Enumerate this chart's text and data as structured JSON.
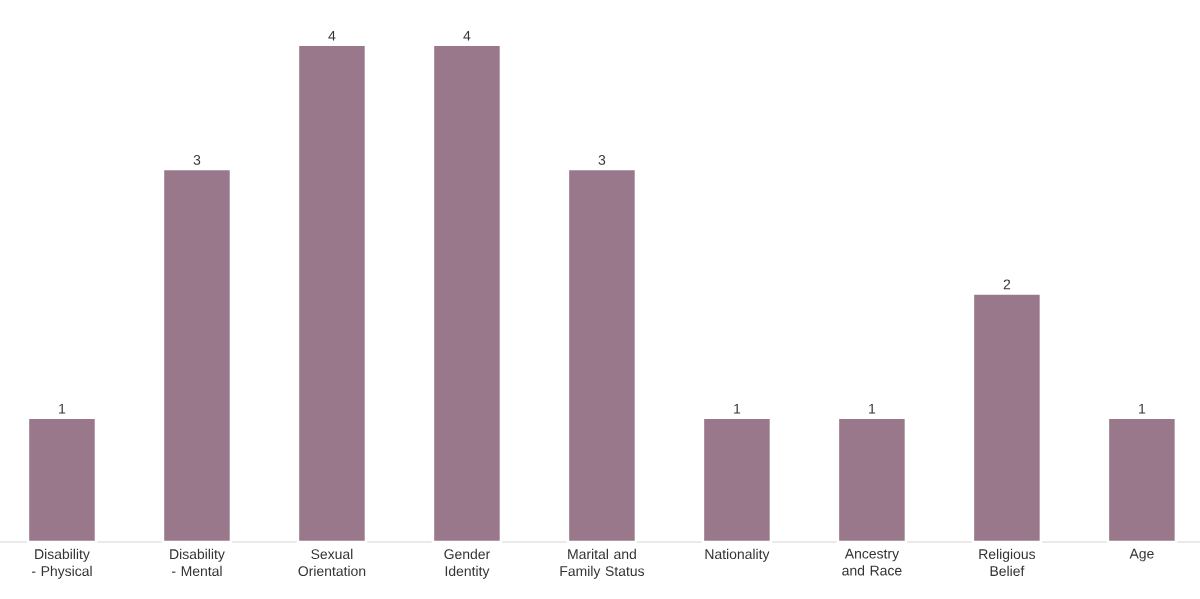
{
  "chart_data": {
    "type": "bar",
    "categories": [
      "Disability - Physical",
      "Disability - Mental",
      "Sexual Orientation",
      "Gender Identity",
      "Marital and Family Status",
      "Nationality",
      "Ancestry and Race",
      "Religious Belief",
      "Age"
    ],
    "values": [
      1,
      3,
      4,
      4,
      3,
      1,
      1,
      2,
      1
    ],
    "value_labels": [
      "1",
      "3",
      "4",
      "4",
      "3",
      "1",
      "1",
      "2",
      "1"
    ],
    "color": "#98788a",
    "tick_labels": "x"
  }
}
